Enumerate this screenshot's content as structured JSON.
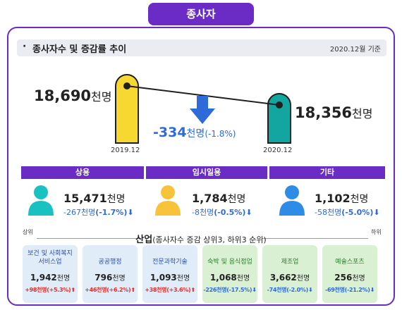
{
  "header": {
    "title": "종사자"
  },
  "section": {
    "bullet": "·",
    "title": "종사자수 및 증감률 추이",
    "reference": "2020.12월 기준"
  },
  "trend": {
    "start": {
      "value": "18,690",
      "unit": "천명",
      "period": "2019.12"
    },
    "end": {
      "value": "18,356",
      "unit": "천명",
      "period": "2020.12"
    },
    "change": {
      "value": "-334",
      "unit": "천명",
      "percent": "(-1.8%)"
    }
  },
  "colors": {
    "purple": "#6a2cc4",
    "yellow": "#f7d830",
    "teal": "#13a6a0",
    "blue_change": "#2f6bd8",
    "red_change": "#e0302c"
  },
  "employment_types": [
    {
      "label": "상용",
      "value": "15,471",
      "unit": "천명",
      "change": "-267",
      "change_unit": "천명",
      "percent": "(-1.7%)",
      "arrow": "⬇",
      "icon": "person-icon",
      "icon_color": "#19c1c1"
    },
    {
      "label": "임시일용",
      "value": "1,784",
      "unit": "천명",
      "change": "-8",
      "change_unit": "천명",
      "percent": "(-0.5%)",
      "arrow": "⬇",
      "icon": "person-icon",
      "icon_color": "#f6c33a"
    },
    {
      "label": "기타",
      "value": "1,102",
      "unit": "천명",
      "change": "-58",
      "change_unit": "천명",
      "percent": "(-5.0%)",
      "arrow": "⬇",
      "icon": "person-icon",
      "icon_color": "#2e8ce6"
    }
  ],
  "industry": {
    "title_bold": "산업",
    "title_rest": "(종사자수 증감 상위3, 하위3 순위)",
    "left_label": "상위",
    "right_label": "하위",
    "items": [
      {
        "name": "보건 및 사회복지 서비스업",
        "value": "1,942",
        "unit": "천명",
        "change": "+98천명(+5.3%)",
        "arrow": "⬆",
        "trend": "up"
      },
      {
        "name": "공공행정",
        "value": "796",
        "unit": "천명",
        "change": "+46천명(+6.2%)",
        "arrow": "⬆",
        "trend": "up"
      },
      {
        "name": "전문과학기술",
        "value": "1,093",
        "unit": "천명",
        "change": "+38천명(+3.6%)",
        "arrow": "⬆",
        "trend": "up"
      },
      {
        "name": "숙박 및 음식점업",
        "value": "1,068",
        "unit": "천명",
        "change": "-226천명(-17.5%)",
        "arrow": "⬇",
        "trend": "down"
      },
      {
        "name": "제조업",
        "value": "3,662",
        "unit": "천명",
        "change": "-74천명(-2.0%)",
        "arrow": "⬇",
        "trend": "down"
      },
      {
        "name": "예술스포츠",
        "value": "256",
        "unit": "천명",
        "change": "-69천명(-21.2%)",
        "arrow": "⬇",
        "trend": "down"
      }
    ]
  }
}
